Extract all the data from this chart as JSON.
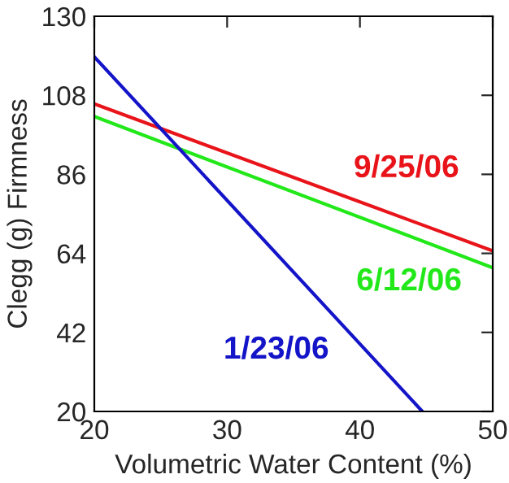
{
  "chart_data": {
    "type": "line",
    "xlabel": "Volumetric Water Content (%)",
    "ylabel": "Clegg (g) Firmness",
    "xlim": [
      20,
      50
    ],
    "xticks": [
      20,
      30,
      40,
      50
    ],
    "ylim": [
      20,
      130
    ],
    "yticks": [
      20,
      42,
      64,
      86,
      108,
      130
    ],
    "grid": false,
    "legend": false,
    "series": [
      {
        "name": "9/25/06",
        "color": "#e8141a",
        "x": [
          20,
          50
        ],
        "values": [
          105.6,
          64.7
        ]
      },
      {
        "name": "6/12/06",
        "color": "#22e81a",
        "x": [
          20,
          50
        ],
        "values": [
          102.1,
          60
        ]
      },
      {
        "name": "1/23/06",
        "color": "#1414c8",
        "x": [
          20,
          44.7
        ],
        "values": [
          118.7,
          20
        ]
      }
    ]
  }
}
